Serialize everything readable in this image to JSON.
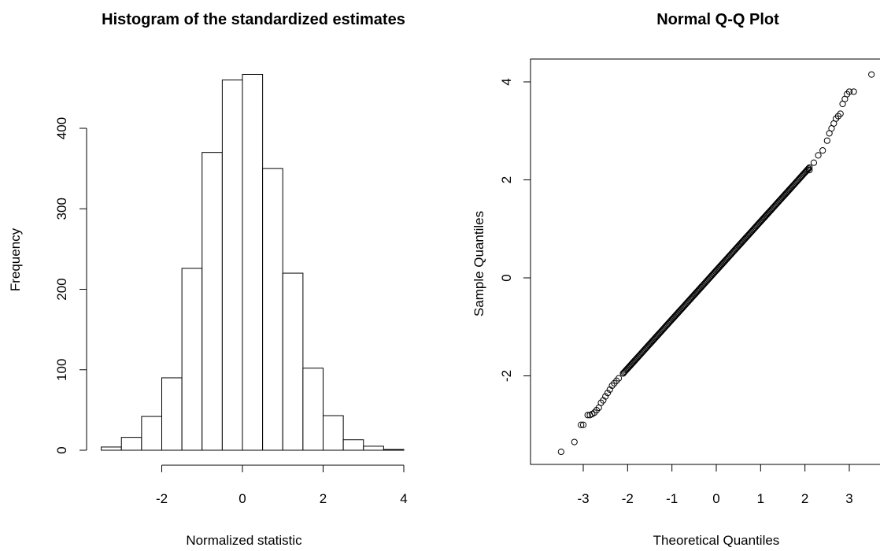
{
  "chart_data": [
    {
      "type": "bar",
      "title": "Histogram of the standardized estimates",
      "xlabel": "Normalized statistic",
      "ylabel": "Frequency",
      "bin_edges": [
        -3.5,
        -3.0,
        -2.5,
        -2.0,
        -1.5,
        -1.0,
        -0.5,
        0.0,
        0.5,
        1.0,
        1.5,
        2.0,
        2.5,
        3.0,
        3.5,
        4.0
      ],
      "values": [
        4,
        16,
        42,
        90,
        226,
        370,
        460,
        467,
        350,
        220,
        102,
        43,
        13,
        5,
        1
      ],
      "xlim": [
        -3.5,
        4.0
      ],
      "ylim": [
        0,
        480
      ],
      "xticks": [
        -2,
        0,
        2,
        4
      ],
      "xtick_labels": [
        "-2",
        "0",
        "2",
        "4"
      ],
      "yticks": [
        0,
        100,
        200,
        300,
        400
      ],
      "ytick_labels": [
        "0",
        "100",
        "200",
        "300",
        "400"
      ],
      "grid": false,
      "legend": "none"
    },
    {
      "type": "scatter",
      "title": "Normal Q-Q Plot",
      "xlabel": "Theoretical Quantiles",
      "ylabel": "Sample Quantiles",
      "xlim": [
        -3.6,
        3.6
      ],
      "ylim": [
        -3.8,
        4.5
      ],
      "xticks": [
        -3,
        -2,
        -1,
        0,
        1,
        2,
        3
      ],
      "xtick_labels": [
        "-3",
        "-2",
        "-1",
        "0",
        "1",
        "2",
        "3"
      ],
      "yticks": [
        -2,
        0,
        2,
        4
      ],
      "ytick_labels": [
        "-2",
        "0",
        "2",
        "4"
      ],
      "points": [
        [
          -3.5,
          -3.55
        ],
        [
          -3.2,
          -3.35
        ],
        [
          -3.05,
          -3.0
        ],
        [
          -3.0,
          -3.0
        ],
        [
          -2.9,
          -2.8
        ],
        [
          -2.85,
          -2.8
        ],
        [
          -2.8,
          -2.78
        ],
        [
          -2.75,
          -2.75
        ],
        [
          -2.7,
          -2.7
        ],
        [
          -2.65,
          -2.65
        ],
        [
          -2.6,
          -2.55
        ],
        [
          -2.55,
          -2.5
        ],
        [
          -2.5,
          -2.42
        ],
        [
          -2.45,
          -2.35
        ],
        [
          -2.4,
          -2.28
        ],
        [
          -2.35,
          -2.2
        ],
        [
          -2.3,
          -2.15
        ],
        [
          -2.25,
          -2.1
        ],
        [
          -2.2,
          -2.05
        ],
        [
          -2.1,
          -1.95
        ],
        [
          2.1,
          2.2
        ],
        [
          2.2,
          2.35
        ],
        [
          2.3,
          2.5
        ],
        [
          2.4,
          2.6
        ],
        [
          2.5,
          2.8
        ],
        [
          2.55,
          2.95
        ],
        [
          2.6,
          3.05
        ],
        [
          2.65,
          3.15
        ],
        [
          2.7,
          3.25
        ],
        [
          2.75,
          3.3
        ],
        [
          2.8,
          3.35
        ],
        [
          2.85,
          3.55
        ],
        [
          2.9,
          3.65
        ],
        [
          2.95,
          3.75
        ],
        [
          3.0,
          3.8
        ],
        [
          3.1,
          3.8
        ],
        [
          3.5,
          4.15
        ]
      ],
      "line_range": [
        -2.1,
        2.1
      ],
      "line_slope": 1.0,
      "line_intercept": 0.15,
      "grid": false,
      "legend": "none"
    }
  ]
}
